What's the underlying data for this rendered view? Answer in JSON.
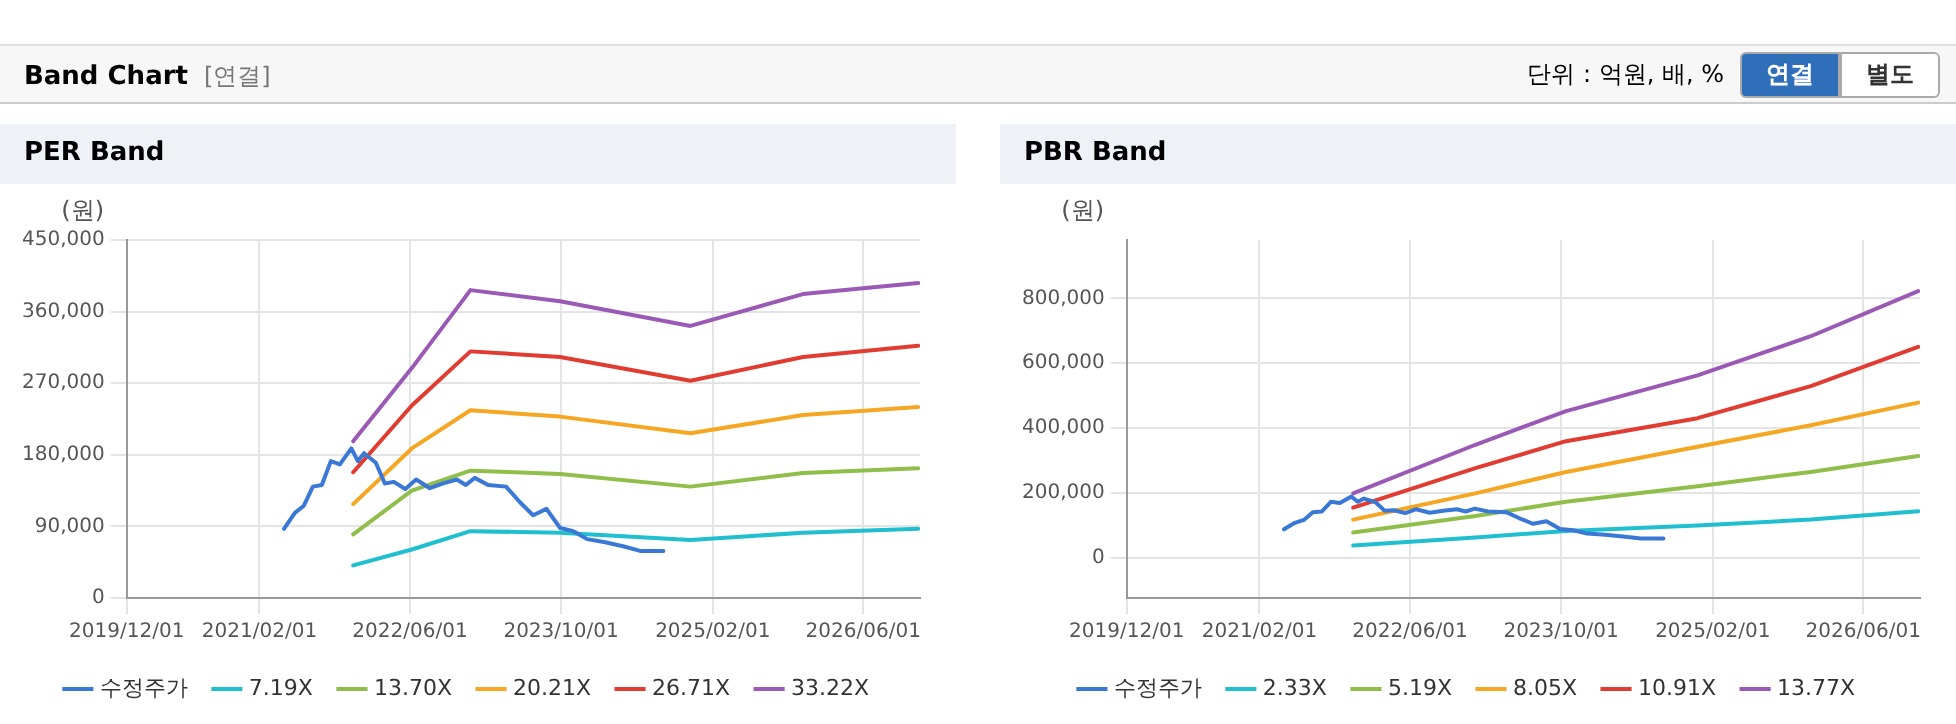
{
  "chart_data": [
    {
      "type": "other",
      "title": "Band Chart",
      "subtitle": "[연결]",
      "annotations": [
        "단위 : 억원, 배, %",
        "연결",
        "별도"
      ]
    },
    {
      "type": "line",
      "title": "PER Band",
      "ylabel": "(원)",
      "grid": true,
      "legend": "bottom",
      "marker": "none",
      "xlim": [
        "2019-12-01",
        "2026-12-01"
      ],
      "xticks": [
        {
          "value": "2019-12-01",
          "label": "2019/12/01"
        },
        {
          "value": "2021-02-01",
          "label": "2021/02/01"
        },
        {
          "value": "2022-06-01",
          "label": "2022/06/01"
        },
        {
          "value": "2023-10-01",
          "label": "2023/10/01"
        },
        {
          "value": "2025-02-01",
          "label": "2025/02/01"
        },
        {
          "value": "2026-06-01",
          "label": "2026/06/01"
        }
      ],
      "ylim": [
        0,
        450000
      ],
      "yticks": [
        0,
        {
          "value": 90000,
          "label": "90,000"
        },
        {
          "value": 180000,
          "label": "180,000"
        },
        {
          "value": 270000,
          "label": "270,000"
        },
        {
          "value": 360000,
          "label": "360,000"
        },
        {
          "value": 450000,
          "label": "450,000"
        }
      ],
      "series": [
        {
          "name": "수정주가",
          "color": "#3a78d6",
          "x": [
            "2021-04-21",
            "2021-05-26",
            "2021-06-24",
            "2021-07-23",
            "2021-08-21",
            "2021-09-19",
            "2021-10-18",
            "2021-11-24",
            "2021-12-15",
            "2022-01-04",
            "2022-02-11",
            "2022-03-12",
            "2022-04-10",
            "2022-05-17",
            "2022-06-21",
            "2022-08-04",
            "2022-09-16",
            "2022-10-30",
            "2022-11-28",
            "2022-12-27",
            "2023-02-08",
            "2023-04-07",
            "2023-05-20",
            "2023-07-03",
            "2023-08-15",
            "2023-09-28",
            "2023-11-10",
            "2023-12-24",
            "2024-02-20",
            "2024-04-18",
            "2024-06-15",
            "2024-08-26"
          ],
          "values": [
            87000,
            107000,
            116000,
            140000,
            142000,
            172000,
            168000,
            188000,
            172000,
            182000,
            170000,
            144000,
            146000,
            137000,
            149000,
            138000,
            144000,
            149000,
            142000,
            151000,
            142000,
            140000,
            121000,
            104000,
            112000,
            88000,
            84000,
            74000,
            70000,
            65000,
            59000,
            59000
          ]
        },
        {
          "name": "7.19X",
          "color": "#1fbfcf",
          "x": [
            "2021-11-30",
            "2022-06-07",
            "2022-12-13",
            "2023-09-28",
            "2024-11-21",
            "2025-11-19",
            "2026-11-25"
          ],
          "values": [
            41000,
            61000,
            84000,
            82000,
            73000,
            82000,
            87000
          ]
        },
        {
          "name": "13.70X",
          "color": "#8fbf4a",
          "x": [
            "2021-11-30",
            "2022-06-07",
            "2022-12-13",
            "2023-09-28",
            "2024-11-21",
            "2025-11-19",
            "2026-11-25"
          ],
          "values": [
            80000,
            135000,
            160000,
            156000,
            140000,
            157000,
            163000
          ]
        },
        {
          "name": "20.21X",
          "color": "#f5a623",
          "x": [
            "2021-11-30",
            "2022-06-07",
            "2022-12-13",
            "2023-09-28",
            "2024-11-21",
            "2025-11-19",
            "2026-11-25"
          ],
          "values": [
            118000,
            188000,
            236000,
            228000,
            207000,
            230000,
            240000
          ]
        },
        {
          "name": "26.71X",
          "color": "#e03c31",
          "x": [
            "2021-11-30",
            "2022-06-07",
            "2022-12-13",
            "2023-09-28",
            "2024-11-21",
            "2025-11-19",
            "2026-11-25"
          ],
          "values": [
            158000,
            242000,
            310000,
            303000,
            273000,
            303000,
            317000
          ]
        },
        {
          "name": "33.22X",
          "color": "#9b59b6",
          "x": [
            "2021-11-30",
            "2022-06-07",
            "2022-12-13",
            "2023-09-28",
            "2024-11-21",
            "2025-11-19",
            "2026-11-25"
          ],
          "values": [
            197000,
            289000,
            387000,
            373000,
            342000,
            382000,
            396000
          ]
        }
      ]
    },
    {
      "type": "line",
      "title": "PBR Band",
      "ylabel": "(원)",
      "grid": true,
      "legend": "bottom",
      "marker": "none",
      "xlim": [
        "2019-12-01",
        "2026-12-01"
      ],
      "xticks": [
        {
          "value": "2019-12-01",
          "label": "2019/12/01"
        },
        {
          "value": "2021-02-01",
          "label": "2021/02/01"
        },
        {
          "value": "2022-06-01",
          "label": "2022/06/01"
        },
        {
          "value": "2023-10-01",
          "label": "2023/10/01"
        },
        {
          "value": "2025-02-01",
          "label": "2025/02/01"
        },
        {
          "value": "2026-06-01",
          "label": "2026/06/01"
        }
      ],
      "ylim": [
        -125000,
        980000
      ],
      "yticks": [
        0,
        {
          "value": 200000,
          "label": "200,000"
        },
        {
          "value": 400000,
          "label": "400,000"
        },
        {
          "value": 600000,
          "label": "600,000"
        },
        {
          "value": 800000,
          "label": "800,000"
        }
      ],
      "series": [
        {
          "name": "수정주가",
          "color": "#3a78d6",
          "x": [
            "2021-04-21",
            "2021-05-26",
            "2021-06-24",
            "2021-07-23",
            "2021-08-21",
            "2021-09-19",
            "2021-10-18",
            "2021-11-24",
            "2021-12-15",
            "2022-01-04",
            "2022-02-11",
            "2022-03-12",
            "2022-04-10",
            "2022-05-17",
            "2022-06-21",
            "2022-08-04",
            "2022-09-16",
            "2022-10-30",
            "2022-11-28",
            "2022-12-27",
            "2023-02-08",
            "2023-04-07",
            "2023-05-20",
            "2023-07-03",
            "2023-08-15",
            "2023-09-28",
            "2023-11-10",
            "2023-12-24",
            "2024-02-20",
            "2024-04-18",
            "2024-06-15",
            "2024-08-26"
          ],
          "values": [
            87000,
            107000,
            116000,
            140000,
            142000,
            172000,
            168000,
            188000,
            172000,
            182000,
            170000,
            144000,
            146000,
            137000,
            149000,
            138000,
            144000,
            149000,
            142000,
            151000,
            142000,
            140000,
            121000,
            104000,
            112000,
            88000,
            84000,
            74000,
            70000,
            65000,
            59000,
            59000
          ]
        },
        {
          "name": "2.33X",
          "color": "#1fbfcf",
          "x": [
            "2021-11-30",
            "2022-12-29",
            "2023-10-17",
            "2024-12-14",
            "2025-12-14",
            "2026-11-25"
          ],
          "values": [
            37000,
            62000,
            82000,
            99000,
            117000,
            143000
          ]
        },
        {
          "name": "5.19X",
          "color": "#8fbf4a",
          "x": [
            "2021-11-30",
            "2022-12-29",
            "2023-10-17",
            "2024-12-14",
            "2025-12-14",
            "2026-11-25"
          ],
          "values": [
            77000,
            128000,
            172000,
            220000,
            264000,
            313000
          ]
        },
        {
          "name": "8.05X",
          "color": "#f5a623",
          "x": [
            "2021-11-30",
            "2022-12-29",
            "2023-10-17",
            "2024-12-14",
            "2025-12-14",
            "2026-11-25"
          ],
          "values": [
            117000,
            198000,
            264000,
            342000,
            408000,
            478000
          ]
        },
        {
          "name": "10.91X",
          "color": "#e03c31",
          "x": [
            "2021-11-30",
            "2022-12-29",
            "2023-10-17",
            "2024-12-14",
            "2025-12-14",
            "2026-11-25"
          ],
          "values": [
            154000,
            276000,
            359000,
            430000,
            529000,
            650000
          ]
        },
        {
          "name": "13.77X",
          "color": "#9b59b6",
          "x": [
            "2021-11-30",
            "2022-12-29",
            "2023-10-17",
            "2024-12-14",
            "2025-12-14",
            "2026-11-25"
          ],
          "values": [
            198000,
            348000,
            452000,
            562000,
            683000,
            822000
          ]
        }
      ]
    }
  ]
}
